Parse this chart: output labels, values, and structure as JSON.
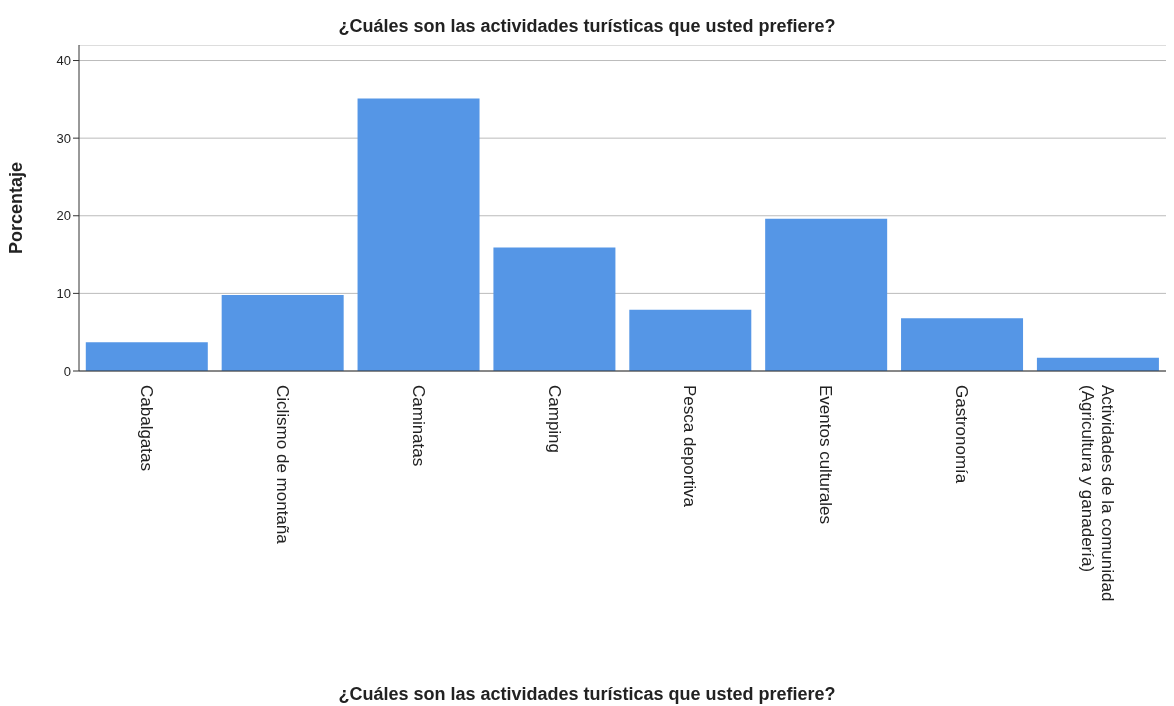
{
  "chart_data": {
    "type": "bar",
    "title": "¿Cuáles son las actividades turísticas que usted prefiere?",
    "xlabel": "¿Cuáles son las actividades turísticas que usted prefiere?",
    "ylabel": "Porcentaje",
    "categories": [
      "Cabalgatas",
      "Ciclismo de montaña",
      "Caminatas",
      "Camping",
      "Pesca deportiva",
      "Eventos culturales",
      "Gastronomía",
      "Actividades de la comunidad (Agricultura y ganadería)"
    ],
    "values": [
      3.7,
      9.8,
      35.1,
      15.9,
      7.9,
      19.6,
      6.8,
      1.7
    ],
    "color": "#5596e6",
    "ylim": [
      0,
      42
    ],
    "yticks": [
      0,
      10,
      20,
      30,
      40
    ],
    "grid": "y"
  }
}
